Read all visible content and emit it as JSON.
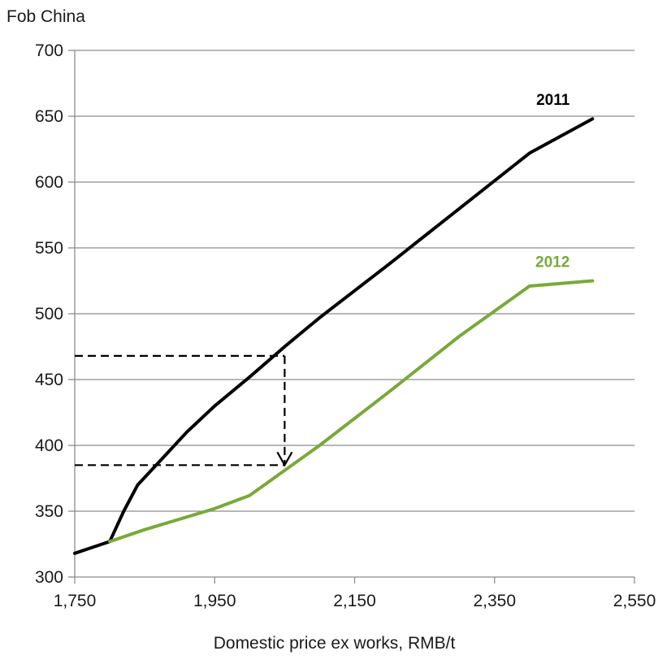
{
  "chart_data": {
    "type": "line",
    "title": "",
    "ylabel": "Fob China",
    "xlabel": "Domestic price ex works, RMB/t",
    "xlim": [
      1750,
      2550
    ],
    "ylim": [
      300,
      700
    ],
    "x_ticks": [
      1750,
      1950,
      2150,
      2350,
      2550
    ],
    "x_tick_labels": [
      "1,750",
      "1,950",
      "2,150",
      "2,350",
      "2,550"
    ],
    "y_ticks": [
      300,
      350,
      400,
      450,
      500,
      550,
      600,
      650,
      700
    ],
    "y_tick_labels": [
      "300",
      "350",
      "400",
      "450",
      "500",
      "550",
      "600",
      "650",
      "700"
    ],
    "grid": "horizontal",
    "series": [
      {
        "name": "2011",
        "color": "#000000",
        "points": [
          [
            1750,
            318
          ],
          [
            1800,
            327
          ],
          [
            1820,
            350
          ],
          [
            1840,
            370
          ],
          [
            1875,
            390
          ],
          [
            1910,
            410
          ],
          [
            1950,
            430
          ],
          [
            2000,
            452
          ],
          [
            2050,
            475
          ],
          [
            2100,
            497
          ],
          [
            2200,
            538
          ],
          [
            2300,
            580
          ],
          [
            2400,
            622
          ],
          [
            2490,
            648
          ]
        ]
      },
      {
        "name": "2012",
        "color": "#7aa83a",
        "points": [
          [
            1800,
            327
          ],
          [
            1850,
            336
          ],
          [
            1950,
            352
          ],
          [
            2000,
            362
          ],
          [
            2050,
            381
          ],
          [
            2100,
            400
          ],
          [
            2200,
            441
          ],
          [
            2300,
            483
          ],
          [
            2400,
            521
          ],
          [
            2490,
            525
          ]
        ]
      }
    ],
    "annotation": {
      "style": "dashed",
      "x": 2050,
      "y_from": 468,
      "y_to": 385,
      "x_from": 1750
    }
  }
}
